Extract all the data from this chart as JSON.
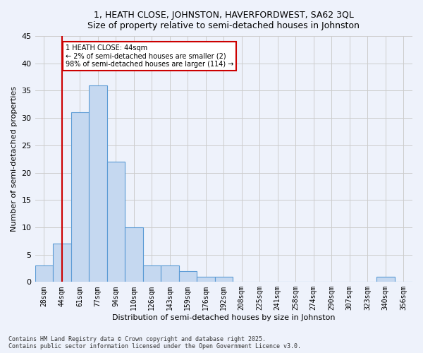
{
  "title1": "1, HEATH CLOSE, JOHNSTON, HAVERFORDWEST, SA62 3QL",
  "title2": "Size of property relative to semi-detached houses in Johnston",
  "xlabel": "Distribution of semi-detached houses by size in Johnston",
  "ylabel": "Number of semi-detached properties",
  "bins": [
    "28sqm",
    "44sqm",
    "61sqm",
    "77sqm",
    "94sqm",
    "110sqm",
    "126sqm",
    "143sqm",
    "159sqm",
    "176sqm",
    "192sqm",
    "208sqm",
    "225sqm",
    "241sqm",
    "258sqm",
    "274sqm",
    "290sqm",
    "307sqm",
    "323sqm",
    "340sqm",
    "356sqm"
  ],
  "values": [
    3,
    7,
    31,
    36,
    22,
    10,
    3,
    3,
    2,
    1,
    1,
    0,
    0,
    0,
    0,
    0,
    0,
    0,
    0,
    1,
    0
  ],
  "bar_color": "#c5d8f0",
  "bar_edge_color": "#5b9bd5",
  "grid_color": "#cccccc",
  "bg_color": "#eef2fb",
  "vline_x": 1,
  "vline_color": "#cc0000",
  "annotation_text": "1 HEATH CLOSE: 44sqm\n← 2% of semi-detached houses are smaller (2)\n98% of semi-detached houses are larger (114) →",
  "annotation_box_color": "#cc0000",
  "ylim": [
    0,
    45
  ],
  "yticks": [
    0,
    5,
    10,
    15,
    20,
    25,
    30,
    35,
    40,
    45
  ],
  "footnote": "Contains HM Land Registry data © Crown copyright and database right 2025.\nContains public sector information licensed under the Open Government Licence v3.0."
}
